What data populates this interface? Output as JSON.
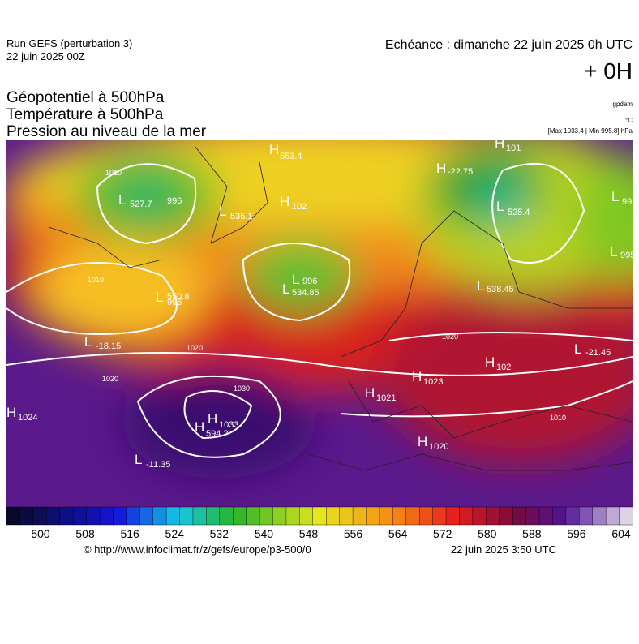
{
  "header": {
    "run": "Run GEFS (perturbation 3)",
    "run_date": "22 juin 2025 00Z",
    "echeance": "Echéance : dimanche 22 juin 2025 0h UTC",
    "offset": "+ 0H",
    "unit_geo": "gpdam",
    "unit_temp": "°C",
    "pressure_range": "[Max 1033.4 | Min 995.8] hPa"
  },
  "titles": [
    "Géopotentiel à 500hPa",
    "Température à 500hPa",
    "Pression au niveau de la mer"
  ],
  "map_labels": [
    {
      "kind": "H",
      "value": "1024"
    },
    {
      "kind": "L",
      "value": "-18.15"
    },
    {
      "kind": "L",
      "value": "-11.35"
    },
    {
      "kind": "H",
      "value": "594.2"
    },
    {
      "kind": "H",
      "value": "1033"
    },
    {
      "kind": "L",
      "value": "550.8"
    },
    {
      "kind": "L",
      "value": "996"
    },
    {
      "kind": "L",
      "value": "527.7"
    },
    {
      "kind": "L",
      "value": "996"
    },
    {
      "kind": "L",
      "value": "535.1"
    },
    {
      "kind": "H",
      "value": "553.4"
    },
    {
      "kind": "H",
      "value": "102"
    },
    {
      "kind": "L",
      "value": "996"
    },
    {
      "kind": "L",
      "value": "534.85"
    },
    {
      "kind": "H",
      "value": "-22.75"
    },
    {
      "kind": "H",
      "value": "101"
    },
    {
      "kind": "L",
      "value": "525.4"
    },
    {
      "kind": "L",
      "value": "99"
    },
    {
      "kind": "L",
      "value": "995"
    },
    {
      "kind": "L",
      "value": "538.45"
    },
    {
      "kind": "H",
      "value": "102"
    },
    {
      "kind": "L",
      "value": "-21.45"
    },
    {
      "kind": "H",
      "value": "1023"
    },
    {
      "kind": "H",
      "value": "1021"
    },
    {
      "kind": "H",
      "value": "1020"
    }
  ],
  "isobar_labels": [
    "1010",
    "1010",
    "1020",
    "1020",
    "1030",
    "1020",
    "1010"
  ],
  "colorbar_ticks": [
    "500",
    "508",
    "516",
    "524",
    "532",
    "540",
    "548",
    "556",
    "564",
    "572",
    "580",
    "588",
    "596",
    "604"
  ],
  "footer": {
    "url": "© http://www.infoclimat.fr/z/gefs/europe/p3-500/0",
    "generated": "22 juin 2025  3:50 UTC"
  }
}
